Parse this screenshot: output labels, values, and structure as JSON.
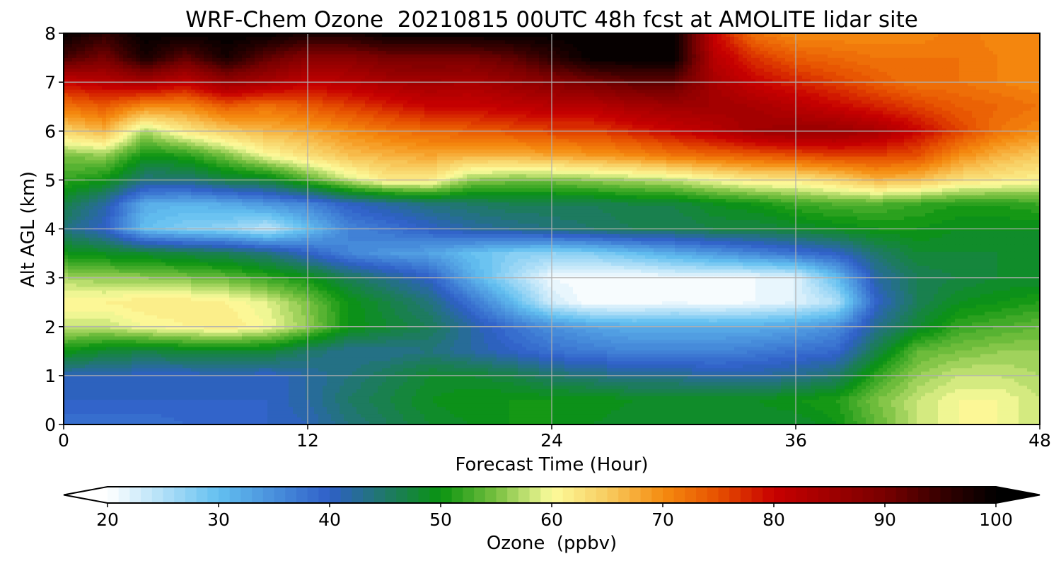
{
  "chart_data": {
    "type": "heatmap",
    "title": "WRF-Chem Ozone  20210815 00UTC 48h fcst at AMOLITE lidar site",
    "xlabel": "Forecast Time (Hour)",
    "ylabel": "Alt AGL (km)",
    "xlim": [
      0,
      48
    ],
    "ylim": [
      0,
      8
    ],
    "x_ticks": [
      0,
      12,
      24,
      36,
      48
    ],
    "y_ticks": [
      0,
      1,
      2,
      3,
      4,
      5,
      6,
      7,
      8
    ],
    "grid": true,
    "x": [
      0,
      2,
      4,
      6,
      8,
      10,
      12,
      14,
      16,
      18,
      20,
      22,
      24,
      26,
      28,
      30,
      32,
      34,
      36,
      38,
      40,
      42,
      44,
      46,
      48
    ],
    "y": [
      0,
      0.5,
      1,
      1.5,
      2,
      2.5,
      3,
      3.5,
      4,
      4.5,
      5,
      5.5,
      6,
      6.5,
      7,
      7.5,
      8
    ],
    "z": [
      [
        38,
        38,
        38,
        39,
        39,
        40,
        41,
        44,
        46,
        48,
        49,
        50,
        50,
        49,
        48,
        48,
        48,
        48,
        48,
        50,
        54,
        58,
        60,
        60,
        58
      ],
      [
        40,
        40,
        40,
        40,
        40,
        40,
        42,
        45,
        47,
        49,
        50,
        50,
        50,
        50,
        49,
        49,
        49,
        49,
        50,
        51,
        55,
        58,
        60,
        60,
        58
      ],
      [
        41,
        41,
        40,
        40,
        41,
        40,
        42,
        44,
        46,
        48,
        48,
        47,
        45,
        44,
        43,
        43,
        42,
        42,
        43,
        45,
        52,
        56,
        58,
        58,
        57
      ],
      [
        50,
        48,
        47,
        48,
        48,
        48,
        45,
        43,
        43,
        44,
        42,
        40,
        38,
        37,
        36,
        36,
        36,
        37,
        38,
        39,
        47,
        54,
        55,
        56,
        56
      ],
      [
        58,
        58,
        60,
        61,
        62,
        60,
        56,
        50,
        48,
        46,
        42,
        38,
        35,
        33,
        32,
        32,
        32,
        32,
        33,
        35,
        43,
        48,
        52,
        53,
        54
      ],
      [
        61,
        61,
        62,
        62,
        61,
        59,
        55,
        50,
        47,
        44,
        38,
        31,
        23,
        20,
        20,
        21,
        20,
        21,
        22,
        25,
        40,
        46,
        49,
        50,
        51
      ],
      [
        57,
        56,
        56,
        55,
        54,
        52,
        50,
        46,
        43,
        40,
        32,
        26,
        21,
        20,
        20,
        21,
        21,
        21,
        22,
        30,
        42,
        46,
        47,
        48,
        48
      ],
      [
        50,
        49,
        48,
        47,
        46,
        44,
        40,
        36,
        34,
        33,
        30,
        28,
        27,
        28,
        30,
        32,
        34,
        36,
        38,
        40,
        45,
        48,
        48,
        48,
        48
      ],
      [
        44,
        40,
        30,
        28,
        27,
        24,
        30,
        36,
        38,
        40,
        42,
        43,
        44,
        45,
        46,
        46,
        47,
        47,
        48,
        49,
        50,
        50,
        49,
        49,
        49
      ],
      [
        47,
        42,
        32,
        31,
        32,
        34,
        36,
        40,
        42,
        44,
        45,
        46,
        46,
        46,
        47,
        47,
        49,
        50,
        52,
        53,
        53,
        52,
        51,
        51,
        52
      ],
      [
        52,
        50,
        44,
        44,
        47,
        48,
        53,
        58,
        62,
        62,
        56,
        55,
        55,
        56,
        57,
        58,
        60,
        62,
        62,
        64,
        67,
        66,
        63,
        62,
        61
      ],
      [
        55,
        56,
        50,
        51,
        55,
        60,
        63,
        66,
        67,
        68,
        67,
        67,
        68,
        69,
        70,
        72,
        73,
        74,
        75,
        76,
        76,
        75,
        70,
        67,
        65
      ],
      [
        64,
        67,
        57,
        62,
        65,
        67,
        68,
        70,
        72,
        73,
        74,
        75,
        76,
        76,
        78,
        80,
        82,
        85,
        86,
        86,
        84,
        80,
        76,
        72,
        70
      ],
      [
        72,
        74,
        70,
        70,
        74,
        72,
        74,
        76,
        78,
        80,
        80,
        81,
        82,
        82,
        84,
        85,
        85,
        84,
        82,
        80,
        78,
        76,
        74,
        73,
        72
      ],
      [
        80,
        82,
        84,
        81,
        86,
        84,
        81,
        82,
        84,
        85,
        84,
        86,
        88,
        90,
        92,
        92,
        84,
        80,
        78,
        76,
        74,
        72,
        72,
        71,
        70
      ],
      [
        94,
        90,
        98,
        92,
        98,
        92,
        88,
        88,
        90,
        90,
        90,
        92,
        96,
        100,
        100,
        100,
        82,
        77,
        74,
        73,
        72,
        72,
        72,
        71,
        71
      ],
      [
        100,
        96,
        100,
        100,
        100,
        100,
        98,
        98,
        100,
        100,
        100,
        100,
        100,
        100,
        100,
        100,
        80,
        72,
        70,
        70,
        70,
        70,
        72,
        70,
        70
      ]
    ],
    "colorbar": {
      "label": "Ozone  (ppbv)",
      "min": 20,
      "max": 100,
      "ticks": [
        20,
        30,
        40,
        50,
        60,
        70,
        80,
        90,
        100
      ],
      "extend": "both",
      "levels": 80
    },
    "colormap_stops": [
      {
        "v": 20,
        "c": "#ffffff"
      },
      {
        "v": 30,
        "c": "#63c0f0"
      },
      {
        "v": 40,
        "c": "#2f5fc8"
      },
      {
        "v": 45,
        "c": "#1f7868"
      },
      {
        "v": 50,
        "c": "#0a9410"
      },
      {
        "v": 55,
        "c": "#78c040"
      },
      {
        "v": 60,
        "c": "#fcfc9c"
      },
      {
        "v": 65,
        "c": "#f8cc60"
      },
      {
        "v": 70,
        "c": "#f58c10"
      },
      {
        "v": 75,
        "c": "#e65000"
      },
      {
        "v": 80,
        "c": "#c80000"
      },
      {
        "v": 85,
        "c": "#a00000"
      },
      {
        "v": 90,
        "c": "#780000"
      },
      {
        "v": 95,
        "c": "#380000"
      },
      {
        "v": 100,
        "c": "#000000"
      }
    ],
    "grid_color": "#b0b0b0",
    "axis_color": "#000000"
  }
}
